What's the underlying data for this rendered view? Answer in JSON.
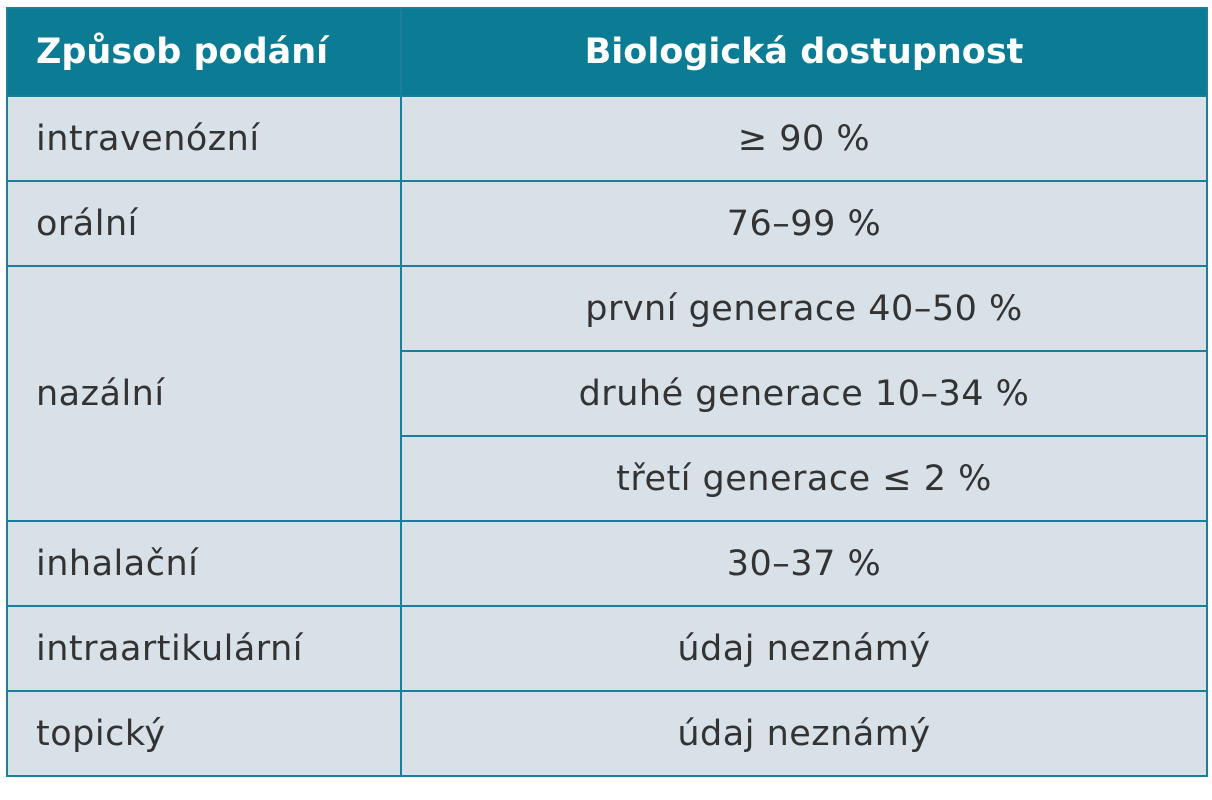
{
  "table": {
    "headers": {
      "route": "Způsob podání",
      "bioavailability": "Biologická dostupnost"
    },
    "rows": [
      {
        "route": "intravenózní",
        "values": [
          "≥ 90 %"
        ]
      },
      {
        "route": "orální",
        "values": [
          "76–99 %"
        ]
      },
      {
        "route": "nazální",
        "values": [
          "první generace 40–50 %",
          "druhé generace 10–34 %",
          "třetí generace ≤ 2 %"
        ]
      },
      {
        "route": "inhalační",
        "values": [
          "30–37 %"
        ]
      },
      {
        "route": "intraartikulární",
        "values": [
          "údaj neznámý"
        ]
      },
      {
        "route": "topický",
        "values": [
          "údaj neznámý"
        ]
      }
    ]
  },
  "colors": {
    "header_bg": "#0c7b94",
    "header_text": "#ffffff",
    "cell_bg": "#d9e1e8",
    "border": "#1a7f9c",
    "cell_text": "#333333"
  }
}
